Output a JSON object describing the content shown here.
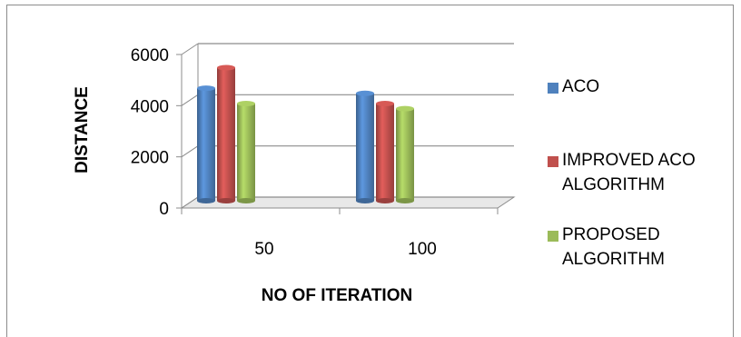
{
  "chart_data": {
    "type": "bar",
    "title": "",
    "xlabel": "NO OF ITERATION",
    "ylabel": "DISTANCE",
    "categories": [
      "50",
      "100"
    ],
    "ylim": [
      0,
      6000
    ],
    "yticks": [
      "0",
      "2000",
      "4000",
      "6000"
    ],
    "grid": true,
    "legend_position": "right",
    "series": [
      {
        "name": "ACO",
        "values": [
          4400,
          4200
        ],
        "color": "#4f81bd"
      },
      {
        "name": "IMPROVED ACO ALGORITHM",
        "values": [
          5200,
          3800
        ],
        "color": "#c0504d"
      },
      {
        "name": "PROPOSED ALGORITHM",
        "values": [
          3800,
          3600
        ],
        "color": "#9bbb59"
      }
    ]
  }
}
